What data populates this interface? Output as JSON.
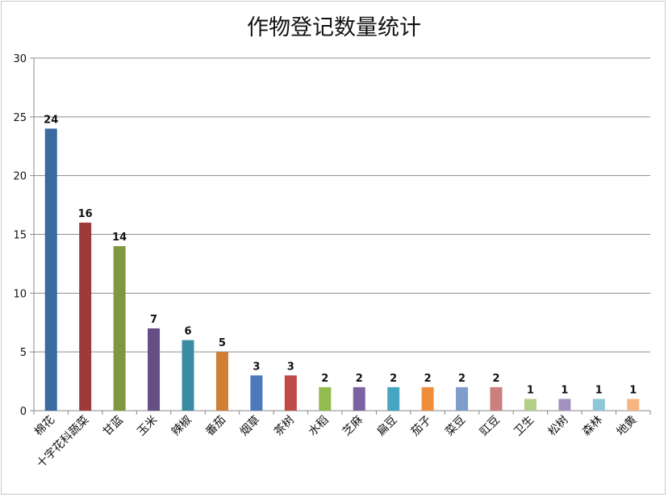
{
  "chart_data": {
    "type": "bar",
    "title": "作物登记数量统计",
    "xlabel": "",
    "ylabel": "",
    "ylim": [
      0,
      30
    ],
    "yticks": [
      0,
      5,
      10,
      15,
      20,
      25,
      30
    ],
    "grid": true,
    "legend": "none",
    "categories": [
      "棉花",
      "十字花科蔬菜",
      "甘蓝",
      "玉米",
      "辣椒",
      "番茄",
      "烟草",
      "茶树",
      "水稻",
      "芝麻",
      "扁豆",
      "茄子",
      "菜豆",
      "豇豆",
      "卫生",
      "松树",
      "森林",
      "地黄"
    ],
    "values": [
      24,
      16,
      14,
      7,
      6,
      5,
      3,
      3,
      2,
      2,
      2,
      2,
      2,
      2,
      1,
      1,
      1,
      1
    ],
    "colors": [
      "#3b6aa0",
      "#9e3b3a",
      "#7f973f",
      "#664d86",
      "#3b8ca3",
      "#cf7f34",
      "#4a79bd",
      "#bf4a4a",
      "#94bb4f",
      "#7d62a2",
      "#46a5c1",
      "#f08d3a",
      "#7f9dcc",
      "#cc7f7f",
      "#b3cf8a",
      "#a291c0",
      "#8ec8d8",
      "#f5b581"
    ]
  }
}
